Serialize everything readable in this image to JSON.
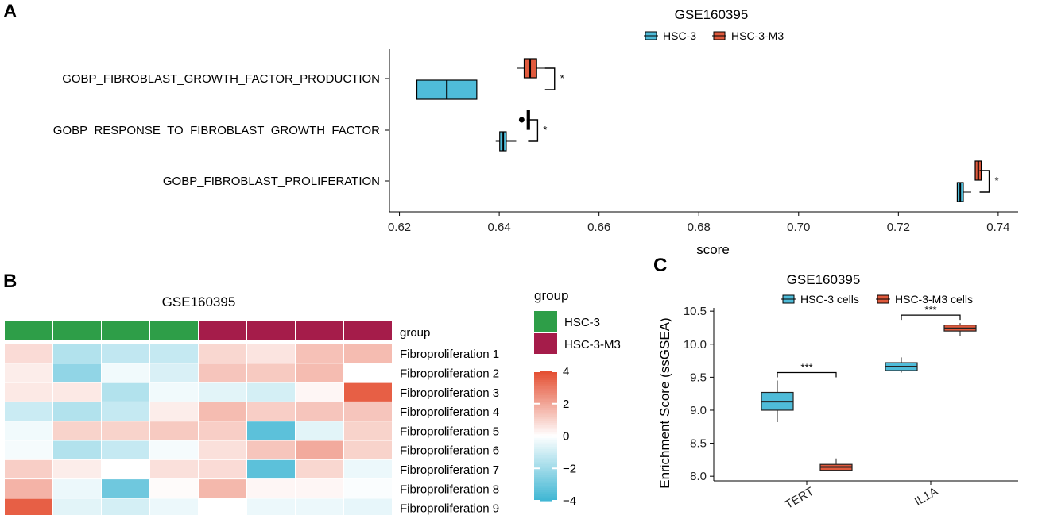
{
  "colors": {
    "hsc3": "#4fbcd9",
    "hsc3m3": "#e05a3d",
    "group_hsc3": "#2e9e48",
    "group_hsc3m3": "#a51c4a",
    "heat_low": "#3fb6d3",
    "heat_mid": "#ffffff",
    "heat_high": "#e44d30"
  },
  "chart_data": [
    {
      "panel": "A",
      "type": "boxplot-horizontal",
      "title": "GSE160395",
      "xlabel": "score",
      "xlim": [
        0.618,
        0.744
      ],
      "xticks": [
        0.62,
        0.64,
        0.66,
        0.68,
        0.7,
        0.72,
        0.74
      ],
      "xtick_labels": [
        "0.62",
        "0.64",
        "0.66",
        "0.68",
        "0.70",
        "0.72",
        "0.74"
      ],
      "legend": [
        "HSC-3",
        "HSC-3-M3"
      ],
      "categories": [
        {
          "label": "GOBP_FIBROBLAST_GROWTH_FACTOR_PRODUCTION",
          "sig": "*",
          "boxes": [
            {
              "group": "HSC-3",
              "min": 0.6235,
              "q1": 0.6235,
              "median": 0.6295,
              "q3": 0.6355,
              "max": 0.6355,
              "outliers": []
            },
            {
              "group": "HSC-3-M3",
              "min": 0.6435,
              "q1": 0.645,
              "median": 0.6462,
              "q3": 0.6475,
              "max": 0.6495,
              "outliers": []
            }
          ]
        },
        {
          "label": "GOBP_RESPONSE_TO_FIBROBLAST_GROWTH_FACTOR",
          "sig": "*",
          "boxes": [
            {
              "group": "HSC-3",
              "min": 0.6393,
              "q1": 0.6401,
              "median": 0.6408,
              "q3": 0.6414,
              "max": 0.6434,
              "outliers": []
            },
            {
              "group": "HSC-3-M3",
              "min": 0.6455,
              "q1": 0.6456,
              "median": 0.6458,
              "q3": 0.646,
              "max": 0.6461,
              "outliers": [
                0.6445
              ]
            }
          ]
        },
        {
          "label": "GOBP_FIBROBLAST_PROLIFERATION",
          "sig": "*",
          "boxes": [
            {
              "group": "HSC-3",
              "min": 0.7318,
              "q1": 0.7318,
              "median": 0.7324,
              "q3": 0.733,
              "max": 0.7346,
              "outliers": []
            },
            {
              "group": "HSC-3-M3",
              "min": 0.7354,
              "q1": 0.7354,
              "median": 0.736,
              "q3": 0.7366,
              "max": 0.7366,
              "outliers": []
            }
          ]
        }
      ]
    },
    {
      "panel": "B",
      "type": "heatmap",
      "title": "GSE160395",
      "group_label": "group",
      "legend_title": "group",
      "groups": [
        "HSC-3",
        "HSC-3-M3"
      ],
      "column_groups": [
        "HSC-3",
        "HSC-3",
        "HSC-3",
        "HSC-3",
        "HSC-3-M3",
        "HSC-3-M3",
        "HSC-3-M3",
        "HSC-3-M3"
      ],
      "rows": [
        "Fibroproliferation 1",
        "Fibroproliferation 2",
        "Fibroproliferation 3",
        "Fibroproliferation 4",
        "Fibroproliferation 5",
        "Fibroproliferation 6",
        "Fibroproliferation 7",
        "Fibroproliferation 8",
        "Fibroproliferation 9"
      ],
      "values": [
        [
          0.8,
          -1.6,
          -1.3,
          -1.2,
          0.9,
          0.6,
          1.4,
          1.5
        ],
        [
          0.4,
          -2.3,
          -0.3,
          -0.8,
          1.3,
          1.2,
          1.5,
          0.0
        ],
        [
          0.5,
          0.5,
          -1.6,
          -0.3,
          -0.6,
          -0.9,
          0.2,
          3.6
        ],
        [
          -1.1,
          -1.6,
          -1.2,
          0.4,
          1.5,
          1.1,
          1.3,
          1.3
        ],
        [
          -0.3,
          1.0,
          1.0,
          1.2,
          1.1,
          -3.4,
          -0.6,
          1.0
        ],
        [
          -0.2,
          -1.6,
          -1.2,
          -0.2,
          0.7,
          1.3,
          1.9,
          1.0
        ],
        [
          1.1,
          0.4,
          0.0,
          0.7,
          0.8,
          -3.4,
          0.9,
          -0.4
        ],
        [
          1.7,
          -0.4,
          -3.0,
          0.1,
          1.6,
          0.2,
          0.2,
          -0.1
        ],
        [
          3.6,
          -0.6,
          -0.9,
          -0.4,
          0.0,
          -0.4,
          -0.4,
          -0.5
        ]
      ],
      "scale_range": [
        -4,
        4
      ],
      "scale_ticks": [
        "4",
        "2",
        "0",
        "−2",
        "−4"
      ]
    },
    {
      "panel": "C",
      "type": "boxplot",
      "title": "GSE160395",
      "ylabel": "Enrichment Score (ssGSEA)",
      "ylim": [
        7.93,
        10.55
      ],
      "yticks": [
        8.0,
        8.5,
        9.0,
        9.5,
        10.0,
        10.5
      ],
      "ytick_labels": [
        "8.0",
        "8.5",
        "9.0",
        "9.5",
        "10.0",
        "10.5"
      ],
      "legend": [
        "HSC-3 cells",
        "HSC-3-M3 cells"
      ],
      "categories": [
        {
          "label": "TERT",
          "sig": "***",
          "boxes": [
            {
              "group": "HSC-3 cells",
              "min": 8.82,
              "q1": 9.0,
              "median": 9.13,
              "q3": 9.27,
              "max": 9.45
            },
            {
              "group": "HSC-3-M3 cells",
              "min": 8.08,
              "q1": 8.09,
              "median": 8.14,
              "q3": 8.18,
              "max": 8.27
            }
          ]
        },
        {
          "label": "IL1A",
          "sig": "***",
          "boxes": [
            {
              "group": "HSC-3 cells",
              "min": 9.57,
              "q1": 9.6,
              "median": 9.66,
              "q3": 9.72,
              "max": 9.8
            },
            {
              "group": "HSC-3-M3 cells",
              "min": 10.12,
              "q1": 10.2,
              "median": 10.24,
              "q3": 10.29,
              "max": 10.32
            }
          ]
        }
      ]
    }
  ],
  "panel_labels": {
    "a": "A",
    "b": "B",
    "c": "C"
  },
  "texts": {
    "a_title": "GSE160395",
    "a_xlabel": "score",
    "a_legend_1": "HSC-3",
    "a_legend_2": "HSC-3-M3",
    "b_title": "GSE160395",
    "b_group_label": "group",
    "b_legend_title": "group",
    "b_legend_1": "HSC-3",
    "b_legend_2": "HSC-3-M3",
    "c_title": "GSE160395",
    "c_ylabel": "Enrichment Score (ssGSEA)",
    "c_legend_1": "HSC-3 cells",
    "c_legend_2": "HSC-3-M3 cells"
  }
}
